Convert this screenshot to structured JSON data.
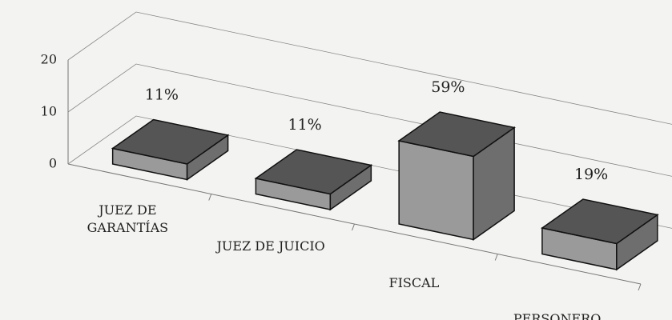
{
  "chart_data": {
    "type": "bar3d",
    "categories": [
      "JUEZ DE GARANTÍAS",
      "JUEZ DE JUICIO",
      "FISCAL",
      "PERSONERO"
    ],
    "values": [
      3,
      3,
      16,
      5
    ],
    "value_labels": [
      "11%",
      "11%",
      "59%",
      "19%"
    ],
    "ylim": [
      0,
      20
    ],
    "yticks": [
      0,
      10,
      20
    ],
    "grid": true,
    "colors": {
      "top": "#555555",
      "front": "#9a9a9a",
      "side": "#6e6e6e"
    }
  }
}
